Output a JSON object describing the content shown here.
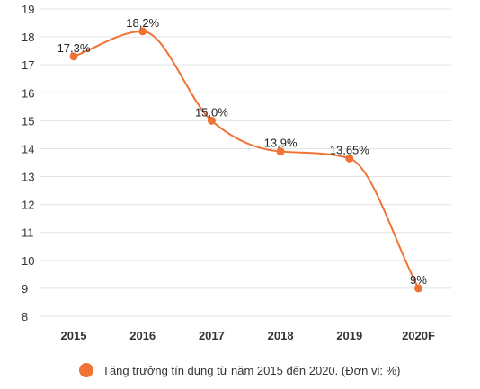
{
  "chart_data": {
    "type": "line",
    "categories": [
      "2015",
      "2016",
      "2017",
      "2018",
      "2019",
      "2020F"
    ],
    "series": [
      {
        "name": "Tăng trưởng tín dụng từ năm 2015 đến 2020. (Đơn vị: %)",
        "values": [
          17.3,
          18.2,
          15.0,
          13.9,
          13.65,
          9
        ],
        "data_labels": [
          "17,3%",
          "18,2%",
          "15,0%",
          "13,9%",
          "13,65%",
          "9%"
        ],
        "color": "#f07235"
      }
    ],
    "ylim": [
      8,
      19
    ],
    "yticks": [
      "8",
      "9",
      "10",
      "11",
      "12",
      "13",
      "14",
      "15",
      "16",
      "17",
      "18",
      "19"
    ],
    "grid": true,
    "legend_position": "bottom"
  }
}
